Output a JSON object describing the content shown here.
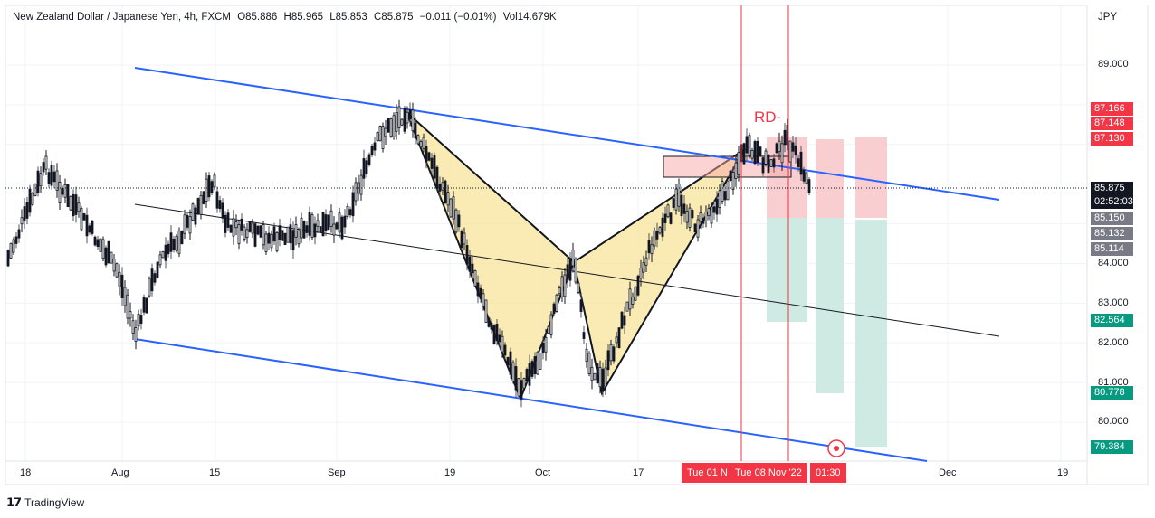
{
  "header": {
    "symbol": "New Zealand Dollar / Japanese Yen, 4h, FXCM",
    "open": "O85.886",
    "high": "H85.965",
    "low": "L85.853",
    "close": "C85.875",
    "change": "−0.011 (−0.01%)",
    "volume": "Vol14.679K"
  },
  "currency": "JPY",
  "footer": {
    "logo": "𝟭𝟳",
    "brand": "TradingView"
  },
  "colors": {
    "channel": "#2962ff",
    "midline": "#131722",
    "pattern_fill": "#f7e49a",
    "pattern_stroke": "#131722",
    "bull": "#131722",
    "stop_zone": "#f7c6c9",
    "target_zone": "#c5e6de",
    "cursor": "#f23645"
  },
  "chart_data": {
    "type": "candlestick",
    "title": "New Zealand Dollar / Japanese Yen, 4h, FXCM",
    "y_axis": {
      "ticks": [
        "89.000",
        "84.000",
        "83.000",
        "82.000",
        "81.000",
        "80.000"
      ],
      "ylim": [
        79.0,
        90.0
      ]
    },
    "x_axis": {
      "ticks": [
        "18",
        "Aug",
        "15",
        "Sep",
        "19",
        "Oct",
        "17",
        "Dec",
        "19"
      ]
    },
    "pattern_label": "RD-",
    "harmonic_points": [
      {
        "date": "Sep 8",
        "price": 87.8
      },
      {
        "date": "Sep 28",
        "price": 80.6
      },
      {
        "date": "Oct 6",
        "price": 84.05
      },
      {
        "date": "Oct 13",
        "price": 80.75
      },
      {
        "date": "Oct 28",
        "price": 86.0
      }
    ],
    "price_tags": [
      {
        "value": "87.166",
        "color": "#f23645"
      },
      {
        "value": "87.148",
        "color": "#f23645"
      },
      {
        "value": "87.130",
        "color": "#f23645"
      },
      {
        "value": "85.875",
        "color": "#131722",
        "sub": "02:52:03"
      },
      {
        "value": "85.150",
        "color": "#787b86"
      },
      {
        "value": "85.132",
        "color": "#787b86"
      },
      {
        "value": "85.114",
        "color": "#787b86"
      },
      {
        "value": "82.564",
        "color": "#089981"
      },
      {
        "value": "80.778",
        "color": "#089981"
      },
      {
        "value": "79.384",
        "color": "#089981"
      }
    ],
    "cursor_labels": [
      "Tue 01 N",
      "Tue 08 Nov '22",
      "01:30"
    ],
    "current_price": 85.875
  }
}
